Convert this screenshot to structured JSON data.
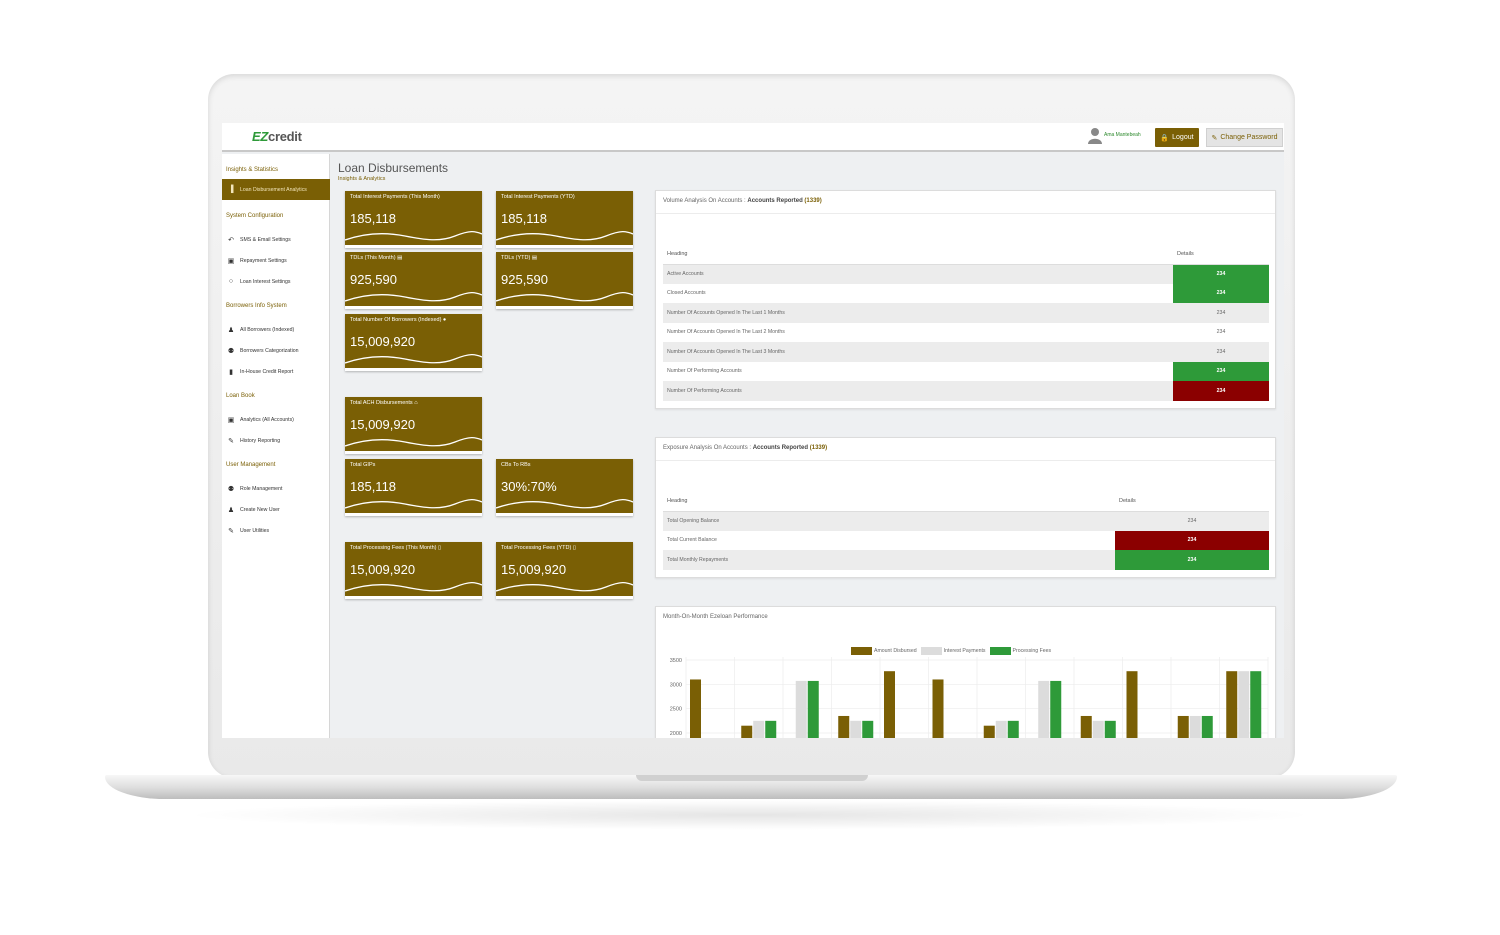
{
  "app": {
    "logo_prefix": "EZ",
    "logo_suffix": "credit"
  },
  "header": {
    "user_name": "Ama Mantebeah",
    "logout_label": "Logout",
    "change_password_label": "Change Password"
  },
  "sidebar": {
    "sections": [
      {
        "title": "Insights & Statistics",
        "items": [
          {
            "label": "Loan Disbursement Analytics",
            "icon": "bar-chart-icon",
            "active": true
          }
        ]
      },
      {
        "title": "System Configuration",
        "items": [
          {
            "label": "SMS & Email Settings",
            "icon": "reply-icon"
          },
          {
            "label": "Repayment Settings",
            "icon": "money-icon"
          },
          {
            "label": "Loan Interest Settings",
            "icon": "circle-icon"
          }
        ]
      },
      {
        "title": "Borrowers Info System",
        "items": [
          {
            "label": "All Borrowers (Indexed)",
            "icon": "user-lock-icon"
          },
          {
            "label": "Borrowers Categorization",
            "icon": "users-icon"
          },
          {
            "label": "In-House Credit Report",
            "icon": "file-icon"
          }
        ]
      },
      {
        "title": "Loan Book",
        "items": [
          {
            "label": "Analytics (All Accounts)",
            "icon": "money-icon"
          },
          {
            "label": "History Reporting",
            "icon": "edit-icon"
          }
        ]
      },
      {
        "title": "User Management",
        "items": [
          {
            "label": "Role Management",
            "icon": "users-icon"
          },
          {
            "label": "Create New User",
            "icon": "user-icon"
          },
          {
            "label": "User Utilities",
            "icon": "edit-icon"
          }
        ]
      }
    ]
  },
  "page": {
    "title": "Loan Disbursements",
    "subtitle": "Insights & Analytics"
  },
  "cards": [
    {
      "label": "Total Interest Payments (This Month)",
      "value": "185,118"
    },
    {
      "label": "Total Interest Payments (YTD)",
      "value": "185,118"
    },
    {
      "label": "TDLs (This Month) ▤",
      "value": "925,590"
    },
    {
      "label": "TDLs (YTD) ▤",
      "value": "925,590"
    },
    {
      "label": "Total Number Of Borrowers (Indexed) ●",
      "value": "15,009,920"
    },
    {
      "label": "Total ACH Disbursements ⌂",
      "value": "15,009,920"
    },
    {
      "label": "Total GIPs",
      "value": "185,118"
    },
    {
      "label": "CBs To RBs",
      "value": "30%:70%"
    },
    {
      "label": "Total Processing Fees (This Month) ▯",
      "value": "15,009,920"
    },
    {
      "label": "Total Processing Fees (YTD) ▯",
      "value": "15,009,920"
    }
  ],
  "volume_panel": {
    "title_prefix": "Volume Analysis On Accounts : ",
    "title_bold": "Accounts Reported",
    "count": "(1339)",
    "col_heading": "Heading",
    "col_details": "Details",
    "rows": [
      {
        "label": "Active Accounts",
        "value": "234",
        "status": "green"
      },
      {
        "label": "Closed Accounts",
        "value": "234",
        "status": "green"
      },
      {
        "label": "Number Of Accounts Opened In The Last 1 Months",
        "value": "234",
        "status": "none"
      },
      {
        "label": "Number Of Accounts Opened In The Last 2 Months",
        "value": "234",
        "status": "none"
      },
      {
        "label": "Number Of Accounts Opened In The Last 3 Months",
        "value": "234",
        "status": "none"
      },
      {
        "label": "Number Of Performing Accounts",
        "value": "234",
        "status": "green"
      },
      {
        "label": "Number Of Performing Accounts",
        "value": "234",
        "status": "red"
      }
    ]
  },
  "exposure_panel": {
    "title_prefix": "Exposure Analysis On Accounts : ",
    "title_bold": "Accounts Reported",
    "count": "(1339)",
    "col_heading": "Heading",
    "col_details": "Details",
    "rows": [
      {
        "label": "Total Opening Balance",
        "value": "234",
        "status": "none"
      },
      {
        "label": "Total Current Balance",
        "value": "234",
        "status": "red"
      },
      {
        "label": "Total Monthly Repayments",
        "value": "234",
        "status": "green"
      }
    ]
  },
  "colors": {
    "brand": "#7a5f05",
    "green": "#2e9a39",
    "red": "#8b0000",
    "gray": "#dcdcdc"
  },
  "chart_data": {
    "type": "bar",
    "title": "Month-On-Month Ezeloan Performance",
    "series": [
      {
        "name": "Amount Disbursed",
        "color": "#7a5f05",
        "values": [
          3100,
          2150,
          null,
          2350,
          3270,
          3100,
          2150,
          null,
          2350,
          3270,
          2350,
          3270
        ]
      },
      {
        "name": "Interest Payments",
        "color": "#dcdcdc",
        "values": [
          null,
          2250,
          3070,
          2250,
          null,
          null,
          2250,
          3070,
          2250,
          null,
          2350,
          3270
        ]
      },
      {
        "name": "Processing Fees",
        "color": "#2e9a39",
        "values": [
          null,
          2250,
          3070,
          2250,
          null,
          null,
          2250,
          3070,
          2250,
          null,
          2350,
          3270
        ]
      }
    ],
    "y_ticks": [
      "3500",
      "3000",
      "2500",
      "2000"
    ],
    "ylim": [
      2000,
      3500
    ],
    "grid": true,
    "legend": "top"
  }
}
